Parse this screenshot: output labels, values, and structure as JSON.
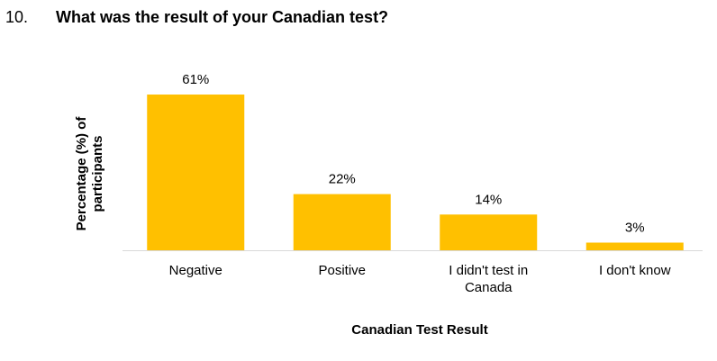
{
  "chart_data": {
    "type": "bar",
    "question_number": "10.",
    "title": "What was the result of your Canadian test?",
    "y_label": "Percentage (%) of participants",
    "x_label": "Canadian Test Result",
    "categories": [
      "Negative",
      "Positive",
      "I didn't test in Canada",
      "I don't know"
    ],
    "values": [
      61,
      22,
      14,
      3
    ],
    "value_labels": [
      "61%",
      "22%",
      "14%",
      "3%"
    ],
    "color": "#ffc000",
    "ylim": [
      0,
      70
    ]
  }
}
